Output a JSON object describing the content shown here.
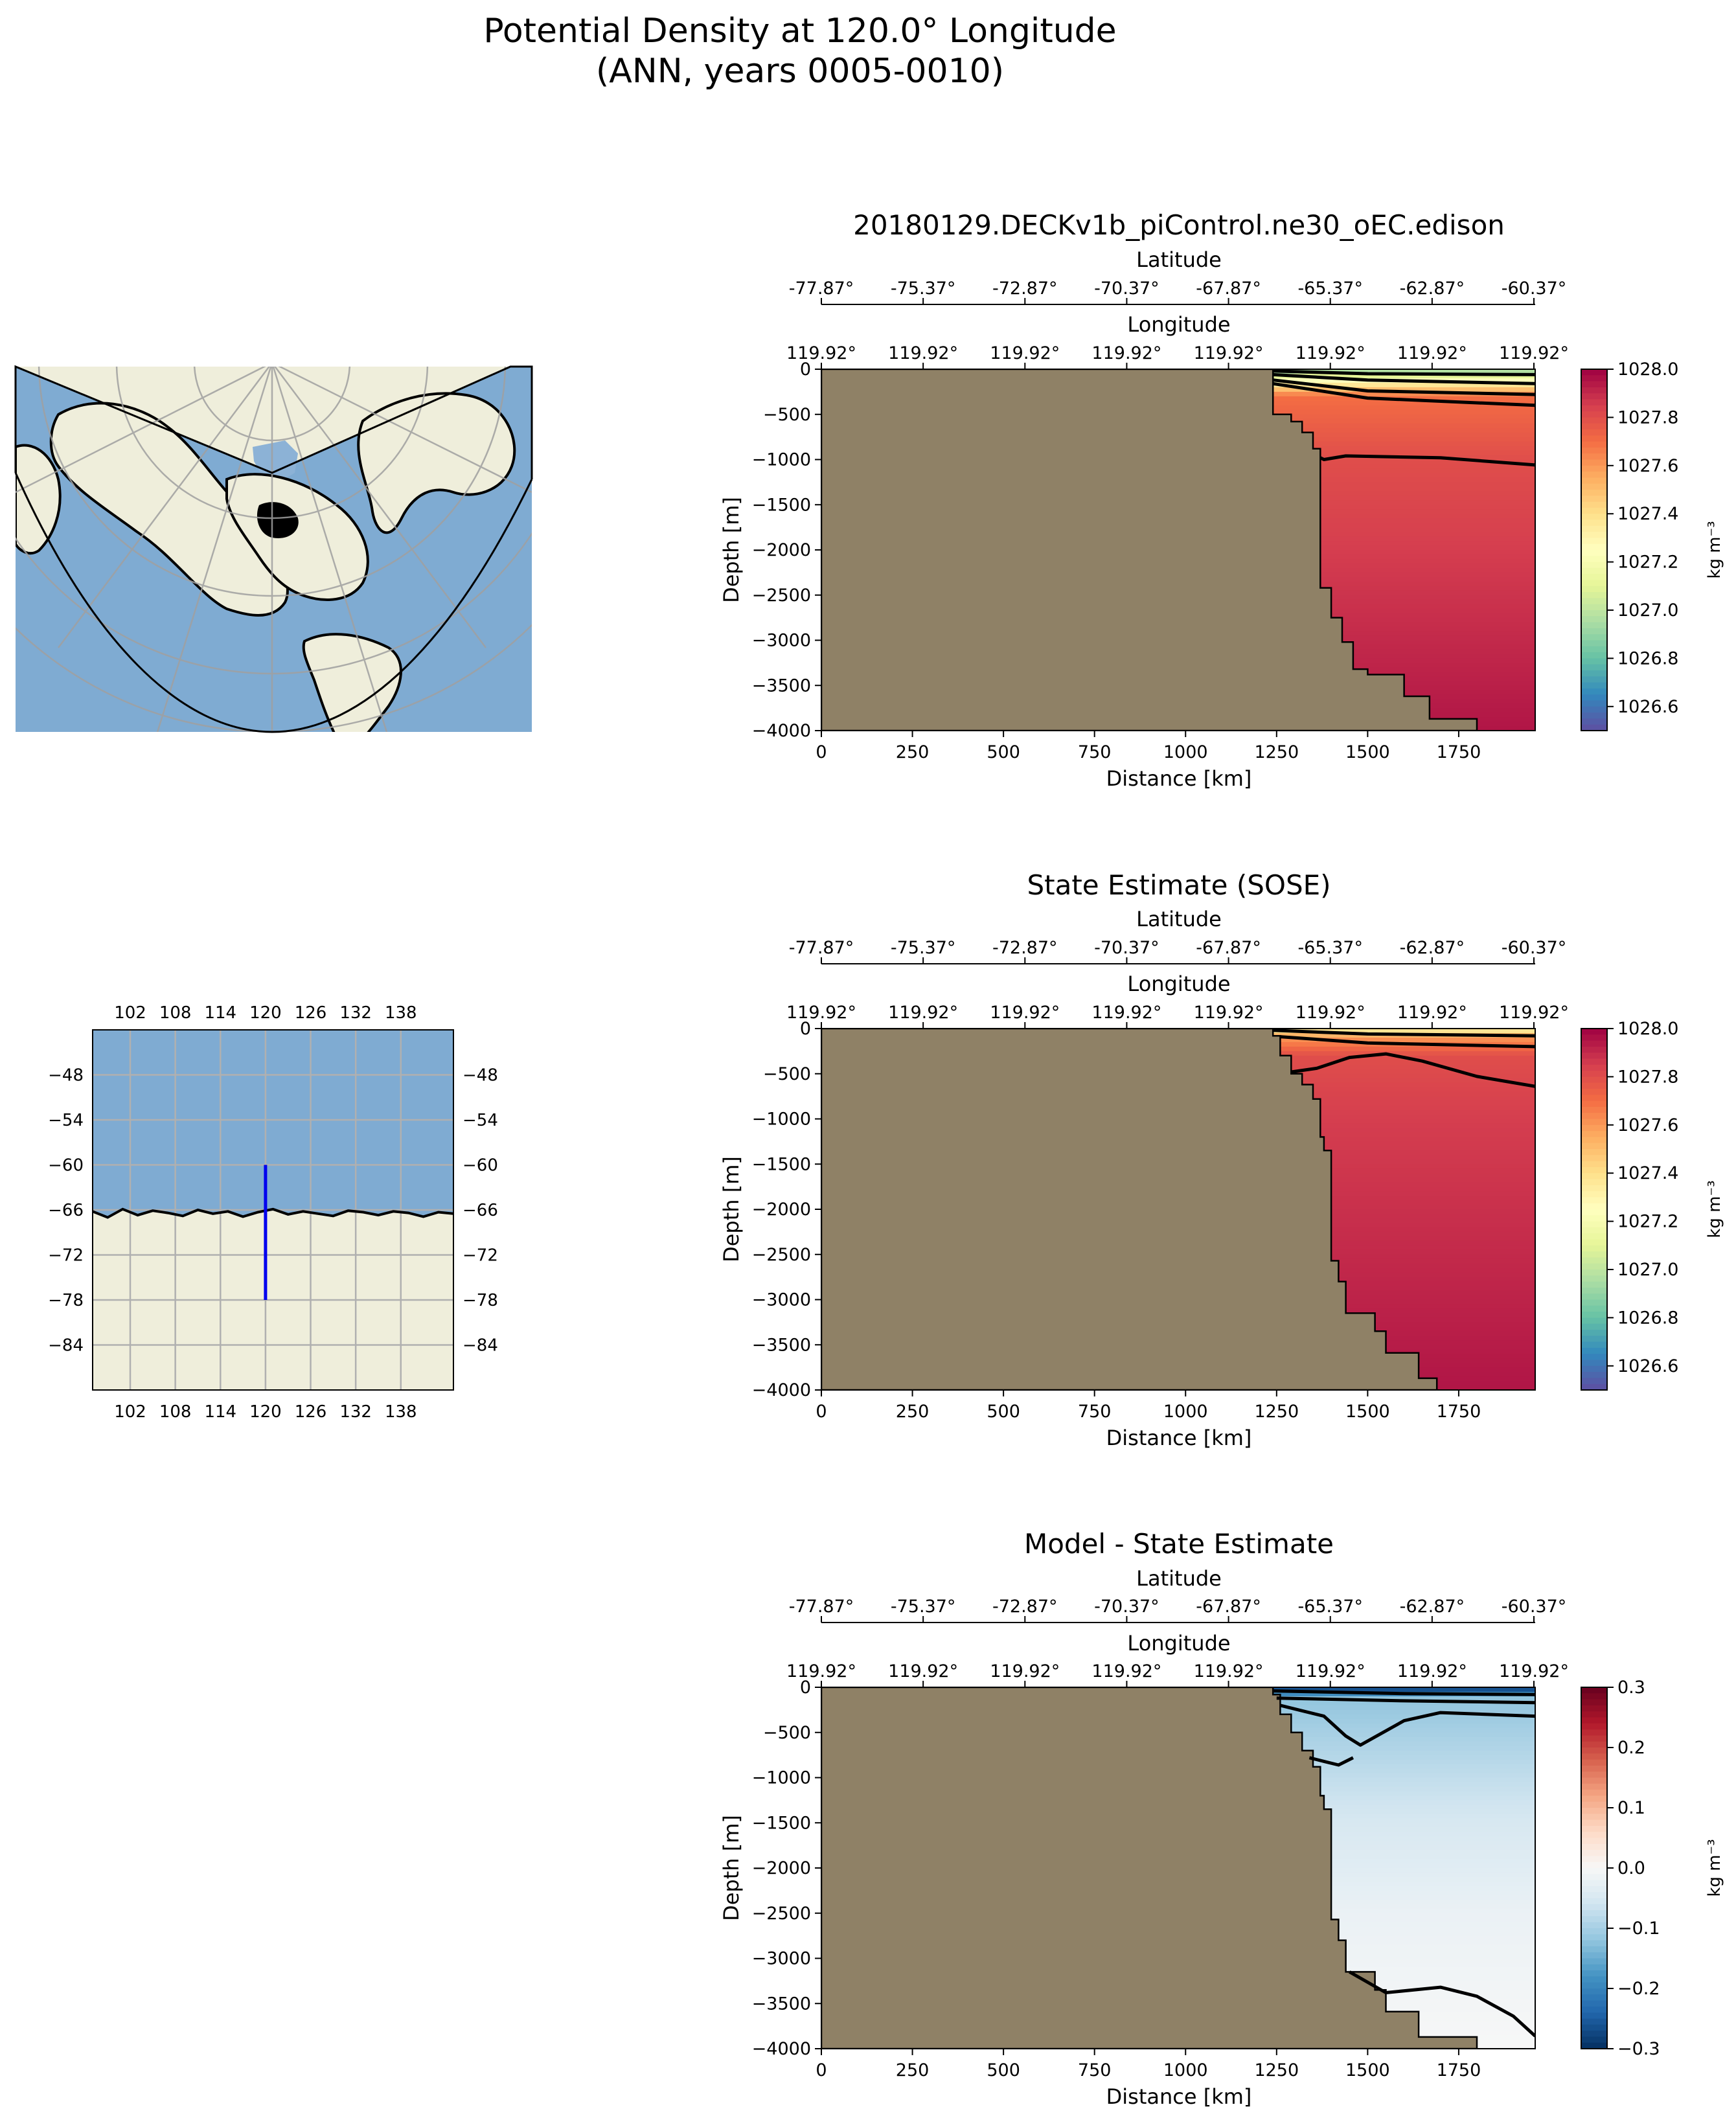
{
  "figure": {
    "title_line1": "Potential Density at 120.0° Longitude",
    "title_line2": "(ANN, years 0005-0010)"
  },
  "overview_map": {
    "projection": "lambert-conformal-conic",
    "colors": {
      "ocean": "#7fabd2",
      "land": "#efeedb",
      "coast": "#000000",
      "grid": "#a0a0a0"
    }
  },
  "transect_map": {
    "x_ticks": [
      "102",
      "108",
      "114",
      "120",
      "126",
      "132",
      "138"
    ],
    "y_ticks": [
      "−48",
      "−54",
      "−60",
      "−66",
      "−72",
      "−78",
      "−84"
    ],
    "xlim": [
      97,
      145
    ],
    "ylim": [
      -90,
      -42
    ],
    "transect": {
      "lon": 120,
      "lat_start": -60,
      "lat_end": -78,
      "color": "#0000ee"
    },
    "coastline_lat": -66.5,
    "colors": {
      "ocean": "#7fabd2",
      "land": "#efeedb",
      "grid": "#b0b0b0"
    }
  },
  "shared_axes": {
    "latitude_label": "Latitude",
    "latitude_ticks": [
      "-77.87°",
      "-75.37°",
      "-72.87°",
      "-70.37°",
      "-67.87°",
      "-65.37°",
      "-62.87°",
      "-60.37°"
    ],
    "longitude_label": "Longitude",
    "longitude_ticks": [
      "119.92°",
      "119.92°",
      "119.92°",
      "119.92°",
      "119.92°",
      "119.92°",
      "119.92°",
      "119.92°"
    ],
    "xlabel": "Distance [km]",
    "ylabel": "Depth [m]",
    "x_ticks": [
      "0",
      "250",
      "500",
      "750",
      "1000",
      "1250",
      "1500",
      "1750"
    ],
    "y_ticks": [
      "0",
      "−500",
      "−1000",
      "−1500",
      "−2000",
      "−2500",
      "−3000",
      "−3500",
      "−4000"
    ],
    "land_color": "#8f8166"
  },
  "chart_data": [
    {
      "type": "heatmap",
      "title": "20180129.DECKv1b_piControl.ne30_oEC.edison",
      "xlim": [
        0,
        1960
      ],
      "ylim": [
        -4000,
        0
      ],
      "colorbar": {
        "label": "kg m⁻³",
        "range": [
          1026.5,
          1028.0
        ],
        "ticks": [
          "1026.6",
          "1026.8",
          "1027.0",
          "1027.2",
          "1027.4",
          "1027.6",
          "1027.8",
          "1028.0"
        ],
        "colormap": "Spectral_r"
      },
      "bathymetry": [
        [
          1240,
          0
        ],
        [
          1240,
          -500
        ],
        [
          1290,
          -500
        ],
        [
          1290,
          -580
        ],
        [
          1320,
          -580
        ],
        [
          1320,
          -700
        ],
        [
          1350,
          -700
        ],
        [
          1350,
          -880
        ],
        [
          1370,
          -880
        ],
        [
          1370,
          -2420
        ],
        [
          1400,
          -2420
        ],
        [
          1400,
          -2750
        ],
        [
          1430,
          -2750
        ],
        [
          1430,
          -3020
        ],
        [
          1460,
          -3020
        ],
        [
          1460,
          -3320
        ],
        [
          1500,
          -3320
        ],
        [
          1500,
          -3380
        ],
        [
          1600,
          -3380
        ],
        [
          1600,
          -3620
        ],
        [
          1670,
          -3620
        ],
        [
          1670,
          -3870
        ],
        [
          1800,
          -3870
        ],
        [
          1800,
          -4000
        ]
      ],
      "contours": [
        [
          [
            1240,
            -20
          ],
          [
            1500,
            -50
          ],
          [
            1960,
            -60
          ]
        ],
        [
          [
            1240,
            -60
          ],
          [
            1500,
            -120
          ],
          [
            1960,
            -160
          ]
        ],
        [
          [
            1240,
            -120
          ],
          [
            1500,
            -240
          ],
          [
            1960,
            -280
          ]
        ],
        [
          [
            1240,
            -160
          ],
          [
            1500,
            -320
          ],
          [
            1960,
            -400
          ]
        ],
        [
          [
            1370,
            -980
          ],
          [
            1380,
            -1000
          ],
          [
            1440,
            -960
          ],
          [
            1700,
            -980
          ],
          [
            1960,
            -1060
          ]
        ]
      ],
      "field": {
        "surface_depth_m": -150,
        "values_by_depth": [
          [
            0,
            1026.9
          ],
          [
            -150,
            1027.3
          ],
          [
            -300,
            1027.7
          ],
          [
            -1000,
            1027.8
          ],
          [
            -4000,
            1027.95
          ]
        ]
      }
    },
    {
      "type": "heatmap",
      "title": "State Estimate (SOSE)",
      "xlim": [
        0,
        1960
      ],
      "ylim": [
        -4000,
        0
      ],
      "colorbar": {
        "label": "kg m⁻³",
        "range": [
          1026.5,
          1028.0
        ],
        "ticks": [
          "1026.6",
          "1026.8",
          "1027.0",
          "1027.2",
          "1027.4",
          "1027.6",
          "1027.8",
          "1028.0"
        ],
        "colormap": "Spectral_r"
      },
      "bathymetry": [
        [
          1240,
          0
        ],
        [
          1240,
          -80
        ],
        [
          1260,
          -80
        ],
        [
          1260,
          -300
        ],
        [
          1290,
          -300
        ],
        [
          1290,
          -500
        ],
        [
          1320,
          -500
        ],
        [
          1320,
          -620
        ],
        [
          1350,
          -620
        ],
        [
          1350,
          -780
        ],
        [
          1370,
          -780
        ],
        [
          1370,
          -1200
        ],
        [
          1380,
          -1200
        ],
        [
          1380,
          -1350
        ],
        [
          1400,
          -1350
        ],
        [
          1400,
          -2570
        ],
        [
          1420,
          -2570
        ],
        [
          1420,
          -2800
        ],
        [
          1440,
          -2800
        ],
        [
          1440,
          -3150
        ],
        [
          1520,
          -3150
        ],
        [
          1520,
          -3350
        ],
        [
          1550,
          -3350
        ],
        [
          1550,
          -3590
        ],
        [
          1640,
          -3590
        ],
        [
          1640,
          -3870
        ],
        [
          1690,
          -3870
        ],
        [
          1690,
          -4000
        ]
      ],
      "contours": [
        [
          [
            1240,
            -20
          ],
          [
            1500,
            -60
          ],
          [
            1960,
            -80
          ]
        ],
        [
          [
            1260,
            -90
          ],
          [
            1500,
            -160
          ],
          [
            1960,
            -200
          ]
        ],
        [
          [
            1290,
            -480
          ],
          [
            1360,
            -440
          ],
          [
            1450,
            -320
          ],
          [
            1550,
            -280
          ],
          [
            1650,
            -360
          ],
          [
            1800,
            -530
          ],
          [
            1960,
            -640
          ]
        ]
      ],
      "field": {
        "surface_depth_m": -100,
        "values_by_depth": [
          [
            0,
            1027.3
          ],
          [
            -100,
            1027.6
          ],
          [
            -300,
            1027.8
          ],
          [
            -1000,
            1027.85
          ],
          [
            -4000,
            1027.95
          ]
        ]
      }
    },
    {
      "type": "heatmap",
      "title": "Model - State Estimate",
      "xlim": [
        0,
        1960
      ],
      "ylim": [
        -4000,
        0
      ],
      "colorbar": {
        "label": "kg m⁻³",
        "range": [
          -0.3,
          0.3
        ],
        "ticks": [
          "−0.3",
          "−0.2",
          "−0.1",
          "0.0",
          "0.1",
          "0.2",
          "0.3"
        ],
        "colormap": "RdBu_r"
      },
      "bathymetry": [
        [
          1240,
          0
        ],
        [
          1240,
          -80
        ],
        [
          1260,
          -80
        ],
        [
          1260,
          -300
        ],
        [
          1290,
          -300
        ],
        [
          1290,
          -500
        ],
        [
          1320,
          -500
        ],
        [
          1320,
          -700
        ],
        [
          1350,
          -700
        ],
        [
          1350,
          -880
        ],
        [
          1370,
          -880
        ],
        [
          1370,
          -1200
        ],
        [
          1380,
          -1200
        ],
        [
          1380,
          -1350
        ],
        [
          1400,
          -1350
        ],
        [
          1400,
          -2570
        ],
        [
          1420,
          -2570
        ],
        [
          1420,
          -2800
        ],
        [
          1440,
          -2800
        ],
        [
          1440,
          -3150
        ],
        [
          1520,
          -3150
        ],
        [
          1520,
          -3350
        ],
        [
          1550,
          -3350
        ],
        [
          1550,
          -3590
        ],
        [
          1640,
          -3590
        ],
        [
          1640,
          -3870
        ],
        [
          1800,
          -3870
        ],
        [
          1800,
          -4000
        ]
      ],
      "contours": [
        [
          [
            1240,
            -40
          ],
          [
            1600,
            -70
          ],
          [
            1960,
            -80
          ]
        ],
        [
          [
            1250,
            -120
          ],
          [
            1600,
            -150
          ],
          [
            1960,
            -170
          ]
        ],
        [
          [
            1260,
            -200
          ],
          [
            1320,
            -260
          ],
          [
            1380,
            -320
          ],
          [
            1440,
            -540
          ],
          [
            1480,
            -640
          ],
          [
            1600,
            -370
          ],
          [
            1700,
            -280
          ],
          [
            1960,
            -320
          ]
        ],
        [
          [
            1340,
            -780
          ],
          [
            1380,
            -820
          ],
          [
            1420,
            -860
          ],
          [
            1460,
            -780
          ]
        ],
        [
          [
            1450,
            -3150
          ],
          [
            1550,
            -3380
          ],
          [
            1700,
            -3320
          ],
          [
            1800,
            -3420
          ],
          [
            1900,
            -3640
          ],
          [
            1960,
            -3860
          ]
        ]
      ],
      "field": {
        "surface_depth_m": -120,
        "values_by_depth": [
          [
            0,
            -0.3
          ],
          [
            -120,
            -0.12
          ],
          [
            -500,
            -0.1
          ],
          [
            -1500,
            -0.05
          ],
          [
            -2500,
            -0.02
          ],
          [
            -4000,
            0.0
          ]
        ]
      }
    }
  ]
}
